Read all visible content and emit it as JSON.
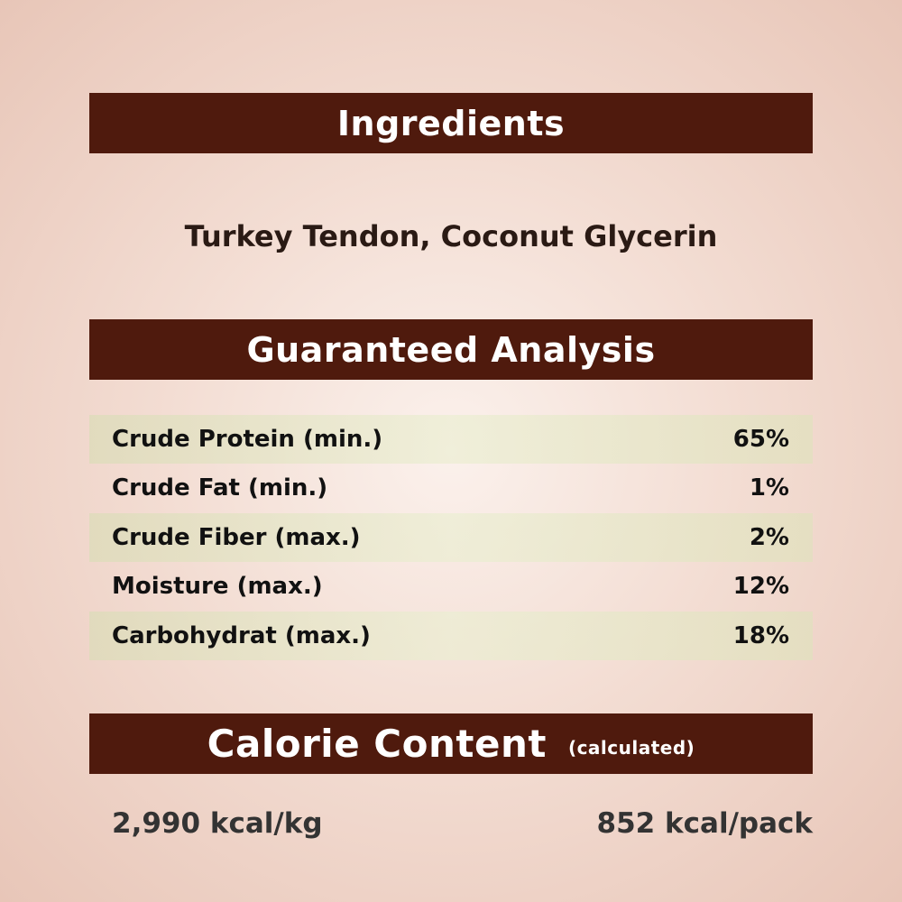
{
  "ingredients": {
    "heading": "Ingredients",
    "text": "Turkey Tendon, Coconut Glycerin"
  },
  "analysis": {
    "heading": "Guaranteed Analysis",
    "rows": [
      {
        "label": "Crude Protein (min.)",
        "value": "65%"
      },
      {
        "label": "Crude Fat (min.)",
        "value": "1%"
      },
      {
        "label": "Crude Fiber (max.)",
        "value": "2%"
      },
      {
        "label": "Moisture (max.)",
        "value": "12%"
      },
      {
        "label": "Carbohydrat (max.)",
        "value": "18%"
      }
    ]
  },
  "calorie": {
    "heading": "Calorie Content",
    "note": "(calculated)",
    "per_kg": "2,990 kcal/kg",
    "per_pack": "852 kcal/pack"
  },
  "colors": {
    "banner": "#4f1a0d",
    "row_shade": "#dcdcb9"
  }
}
